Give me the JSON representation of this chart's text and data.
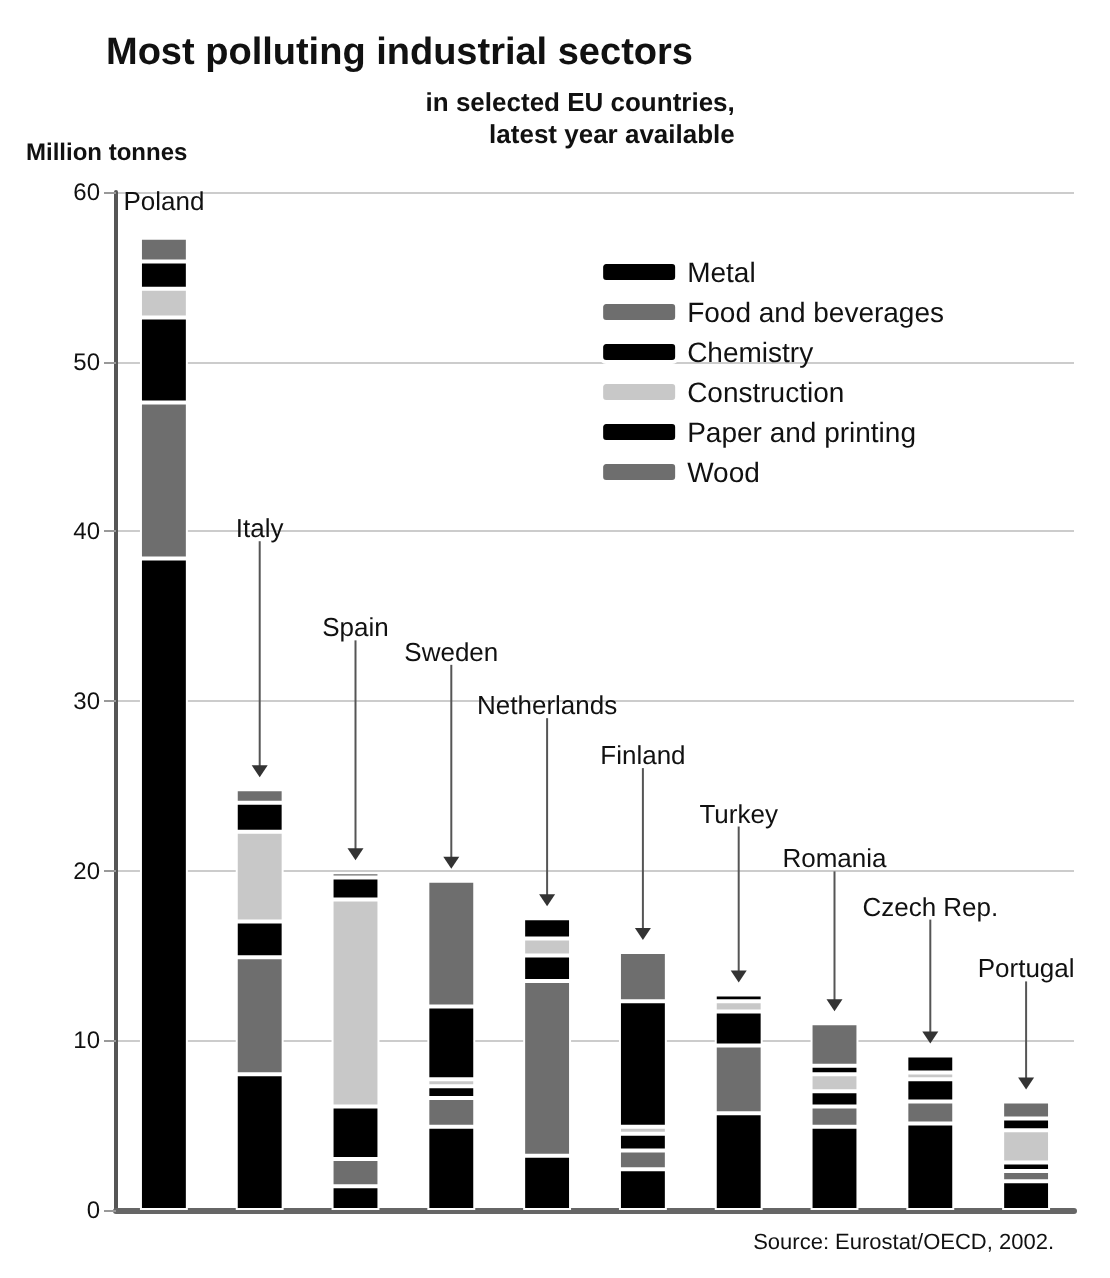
{
  "chart_data": {
    "type": "bar",
    "stacked": true,
    "title": "Most polluting industrial sectors",
    "subtitle": "in selected EU countries,\nlatest year available",
    "ylabel": "Million tonnes",
    "categories": [
      "Poland",
      "Italy",
      "Spain",
      "Sweden",
      "Netherlands",
      "Finland",
      "Turkey",
      "Romania",
      "Czech Rep.",
      "Portugal"
    ],
    "series": [
      {
        "name": "Metal",
        "color": "#000000",
        "values": [
          38.4,
          8.0,
          1.4,
          4.9,
          3.2,
          2.4,
          5.7,
          4.9,
          5.1,
          1.7
        ]
      },
      {
        "name": "Food and beverages",
        "color": "#6e6e6e",
        "values": [
          9.2,
          6.9,
          1.6,
          1.7,
          10.3,
          1.1,
          4.0,
          1.2,
          1.3,
          0.6
        ]
      },
      {
        "name": "Chemistry",
        "color": "#000000",
        "values": [
          5.0,
          2.1,
          3.1,
          0.7,
          1.5,
          1.0,
          2.0,
          0.9,
          1.3,
          0.5
        ]
      },
      {
        "name": "Construction",
        "color": "#c8c8c8",
        "values": [
          1.7,
          5.3,
          12.2,
          0.4,
          1.0,
          0.4,
          0.6,
          1.0,
          0.4,
          1.9
        ]
      },
      {
        "name": "Paper and printing",
        "color": "#000000",
        "values": [
          1.6,
          1.7,
          1.3,
          4.3,
          1.2,
          7.4,
          0.4,
          0.5,
          1.0,
          0.7
        ]
      },
      {
        "name": "Wood",
        "color": "#6e6e6e",
        "values": [
          1.4,
          0.8,
          0.3,
          7.4,
          null,
          2.9,
          null,
          2.5,
          null,
          1.0
        ]
      }
    ],
    "ylim": [
      0,
      60
    ],
    "yticks": [
      0,
      10,
      20,
      30,
      40,
      50,
      60
    ],
    "grid": "y",
    "legend": "top right",
    "annotations": [
      "Source: Eurostat/OECD, 2002."
    ]
  }
}
